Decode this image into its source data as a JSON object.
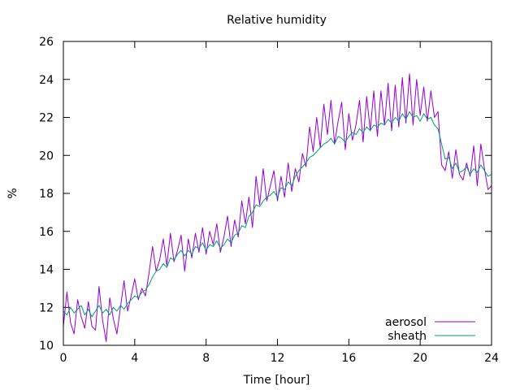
{
  "chart_data": {
    "type": "line",
    "title": "Relative humidity",
    "xlabel": "Time [hour]",
    "ylabel": "%",
    "xlim": [
      0,
      24
    ],
    "ylim": [
      10,
      26
    ],
    "xticks": [
      0,
      4,
      8,
      12,
      16,
      20,
      24
    ],
    "yticks": [
      10,
      12,
      14,
      16,
      18,
      20,
      22,
      24,
      26
    ],
    "grid": false,
    "legend": "bottom-right",
    "series": [
      {
        "name": "aerosol",
        "color": "#9400d3",
        "x": [
          0.0,
          0.2,
          0.4,
          0.6,
          0.8,
          1.0,
          1.2,
          1.4,
          1.6,
          1.8,
          2.0,
          2.2,
          2.4,
          2.6,
          2.8,
          3.0,
          3.2,
          3.4,
          3.6,
          3.8,
          4.0,
          4.2,
          4.4,
          4.6,
          4.8,
          5.0,
          5.2,
          5.4,
          5.6,
          5.8,
          6.0,
          6.2,
          6.4,
          6.6,
          6.8,
          7.0,
          7.2,
          7.4,
          7.6,
          7.8,
          8.0,
          8.2,
          8.4,
          8.6,
          8.8,
          9.0,
          9.2,
          9.4,
          9.6,
          9.8,
          10.0,
          10.2,
          10.4,
          10.6,
          10.8,
          11.0,
          11.2,
          11.4,
          11.6,
          11.8,
          12.0,
          12.2,
          12.4,
          12.6,
          12.8,
          13.0,
          13.2,
          13.4,
          13.6,
          13.8,
          14.0,
          14.2,
          14.4,
          14.6,
          14.8,
          15.0,
          15.2,
          15.4,
          15.6,
          15.8,
          16.0,
          16.2,
          16.4,
          16.6,
          16.8,
          17.0,
          17.2,
          17.4,
          17.6,
          17.8,
          18.0,
          18.2,
          18.4,
          18.6,
          18.8,
          19.0,
          19.2,
          19.4,
          19.6,
          19.8,
          20.0,
          20.2,
          20.4,
          20.6,
          20.8,
          21.0,
          21.2,
          21.4,
          21.6,
          21.8,
          22.0,
          22.2,
          22.4,
          22.6,
          22.8,
          23.0,
          23.2,
          23.4,
          23.6,
          23.8,
          24.0
        ],
        "values": [
          11.0,
          12.8,
          11.2,
          10.6,
          12.4,
          11.5,
          10.9,
          12.3,
          11.0,
          10.8,
          13.1,
          11.3,
          10.2,
          12.5,
          11.4,
          10.6,
          12.0,
          13.4,
          11.8,
          12.6,
          13.5,
          12.4,
          13.0,
          12.6,
          13.8,
          15.2,
          13.9,
          14.5,
          15.6,
          14.2,
          15.9,
          14.4,
          15.0,
          15.8,
          13.9,
          15.6,
          14.6,
          15.9,
          14.9,
          16.2,
          14.8,
          16.0,
          15.3,
          16.4,
          14.9,
          15.7,
          16.8,
          15.2,
          16.6,
          15.7,
          17.6,
          16.4,
          17.8,
          16.2,
          18.9,
          17.4,
          19.3,
          17.6,
          18.4,
          19.2,
          17.6,
          18.9,
          17.8,
          19.6,
          18.1,
          19.3,
          18.6,
          20.1,
          19.4,
          21.5,
          20.2,
          22.0,
          20.4,
          22.7,
          21.1,
          22.9,
          20.6,
          21.8,
          22.8,
          20.3,
          22.2,
          20.8,
          21.6,
          22.9,
          20.7,
          23.1,
          21.3,
          23.4,
          21.0,
          23.4,
          21.6,
          23.8,
          21.3,
          23.7,
          21.5,
          24.1,
          21.7,
          24.3,
          21.6,
          24.0,
          22.1,
          23.6,
          21.8,
          23.4,
          22.0,
          22.3,
          19.5,
          19.2,
          20.2,
          18.8,
          20.3,
          19.0,
          18.7,
          19.6,
          18.9,
          20.5,
          18.4,
          20.6,
          19.3,
          18.2,
          18.4
        ]
      },
      {
        "name": "sheath",
        "color": "#009e73",
        "x": [
          0.0,
          0.2,
          0.4,
          0.6,
          0.8,
          1.0,
          1.2,
          1.4,
          1.6,
          1.8,
          2.0,
          2.2,
          2.4,
          2.6,
          2.8,
          3.0,
          3.2,
          3.4,
          3.6,
          3.8,
          4.0,
          4.2,
          4.4,
          4.6,
          4.8,
          5.0,
          5.2,
          5.4,
          5.6,
          5.8,
          6.0,
          6.2,
          6.4,
          6.6,
          6.8,
          7.0,
          7.2,
          7.4,
          7.6,
          7.8,
          8.0,
          8.2,
          8.4,
          8.6,
          8.8,
          9.0,
          9.2,
          9.4,
          9.6,
          9.8,
          10.0,
          10.2,
          10.4,
          10.6,
          10.8,
          11.0,
          11.2,
          11.4,
          11.6,
          11.8,
          12.0,
          12.2,
          12.4,
          12.6,
          12.8,
          13.0,
          13.2,
          13.4,
          13.6,
          13.8,
          14.0,
          14.2,
          14.4,
          14.6,
          14.8,
          15.0,
          15.2,
          15.4,
          15.6,
          15.8,
          16.0,
          16.2,
          16.4,
          16.6,
          16.8,
          17.0,
          17.2,
          17.4,
          17.6,
          17.8,
          18.0,
          18.2,
          18.4,
          18.6,
          18.8,
          19.0,
          19.2,
          19.4,
          19.6,
          19.8,
          20.0,
          20.2,
          20.4,
          20.6,
          20.8,
          21.0,
          21.2,
          21.4,
          21.6,
          21.8,
          22.0,
          22.2,
          22.4,
          22.6,
          22.8,
          23.0,
          23.2,
          23.4,
          23.6,
          23.8,
          24.0
        ],
        "values": [
          11.8,
          11.6,
          12.0,
          11.7,
          11.9,
          12.1,
          11.6,
          11.9,
          11.5,
          11.8,
          12.1,
          11.7,
          11.9,
          11.6,
          12.0,
          11.8,
          12.1,
          11.9,
          12.2,
          12.4,
          12.6,
          12.5,
          12.8,
          12.9,
          13.2,
          13.6,
          13.9,
          14.0,
          14.3,
          14.1,
          14.6,
          14.5,
          14.8,
          15.0,
          14.7,
          15.0,
          14.8,
          15.2,
          15.1,
          15.4,
          15.0,
          15.3,
          15.2,
          15.5,
          15.1,
          15.3,
          15.6,
          15.4,
          15.8,
          15.9,
          16.3,
          16.2,
          16.8,
          17.0,
          17.4,
          17.3,
          17.6,
          17.8,
          17.9,
          18.1,
          17.8,
          18.3,
          18.2,
          18.6,
          18.4,
          18.9,
          19.2,
          19.4,
          19.6,
          19.9,
          20.0,
          20.2,
          20.4,
          20.6,
          20.7,
          20.9,
          20.6,
          21.0,
          20.9,
          20.7,
          21.0,
          21.2,
          21.1,
          21.4,
          21.2,
          21.5,
          21.3,
          21.6,
          21.5,
          21.7,
          21.6,
          21.9,
          21.7,
          22.0,
          21.8,
          22.2,
          21.9,
          22.3,
          22.0,
          22.1,
          21.8,
          22.2,
          21.9,
          22.0,
          21.6,
          21.4,
          20.6,
          19.8,
          19.9,
          19.3,
          19.6,
          19.1,
          19.2,
          19.4,
          19.0,
          19.3,
          19.1,
          19.5,
          19.2,
          18.9,
          19.0
        ]
      }
    ]
  }
}
